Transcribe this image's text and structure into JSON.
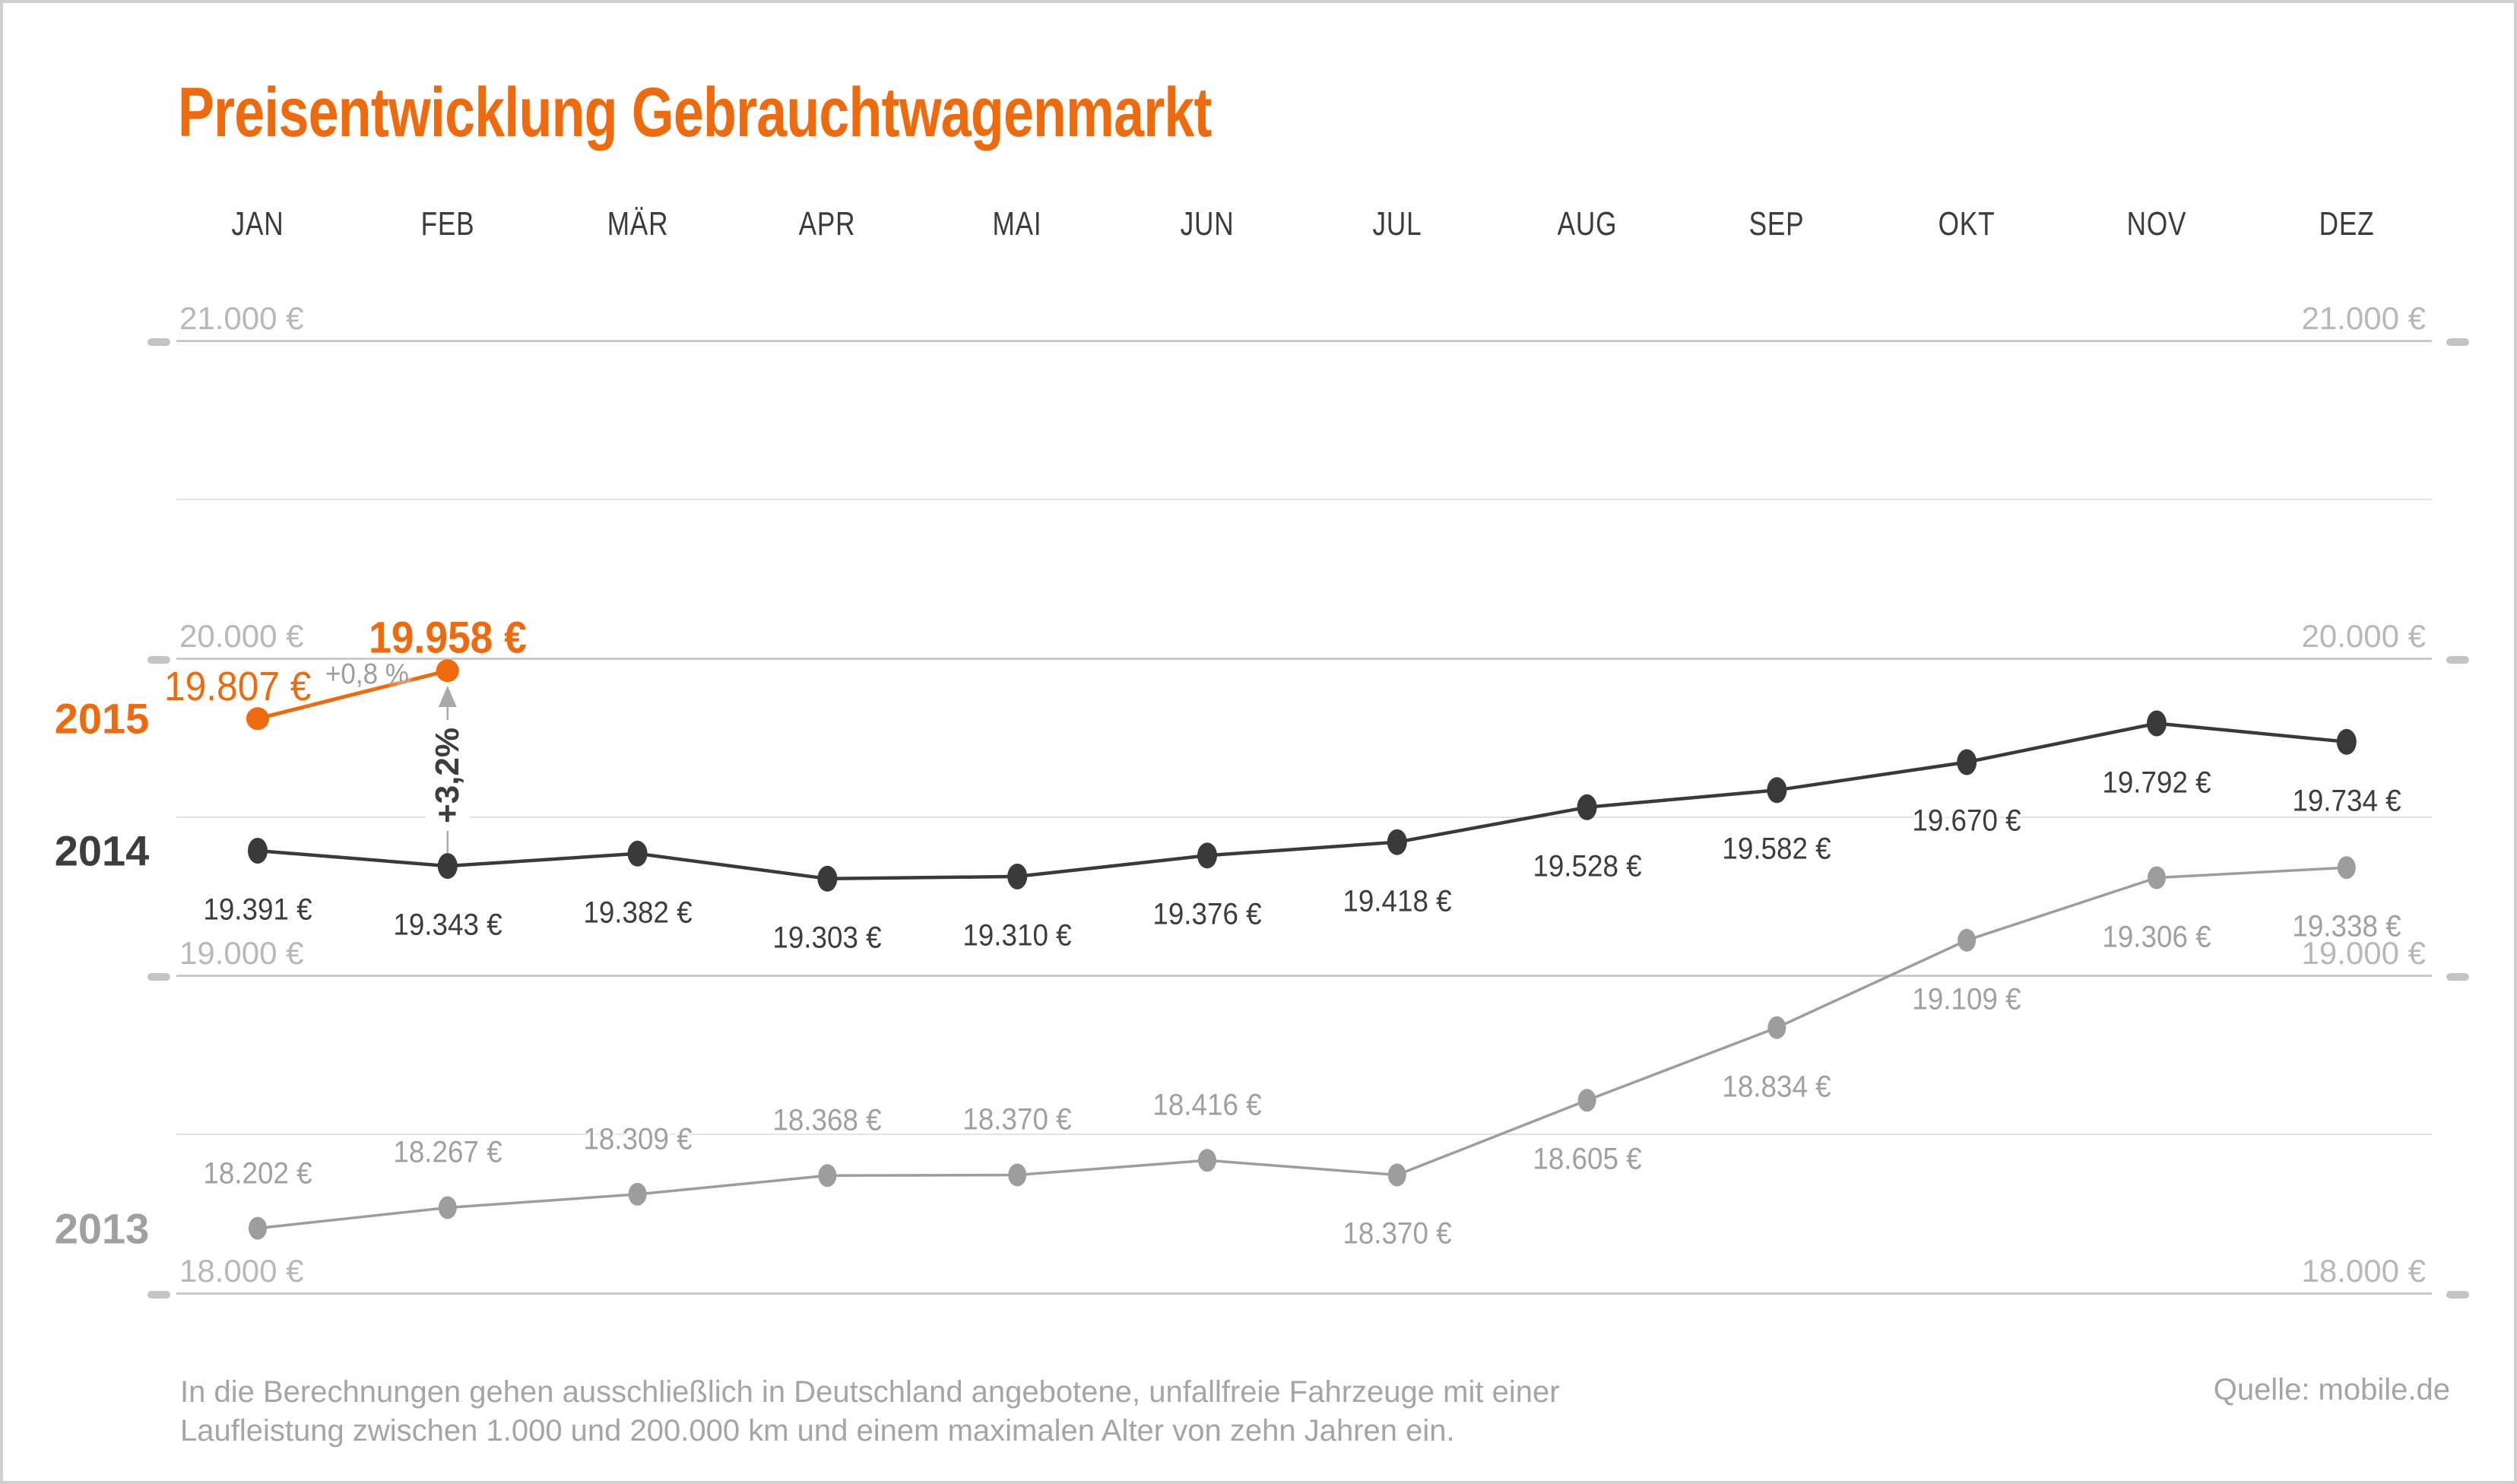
{
  "header": {
    "title": "Preisentwicklung Gebrauchtwagenmarkt"
  },
  "footer": {
    "note_lines": [
      "In die Berechnungen gehen ausschließlich in Deutschland angebotene, unfallfreie Fahrzeuge mit einer",
      "Laufleistung zwischen 1.000 und 200.000 km und einem maximalen Alter von zehn Jahren ein."
    ],
    "source": "Quelle: mobile.de"
  },
  "colors": {
    "accent": "#EF6A0D",
    "series_2014": "#3A3A3A",
    "series_2013": "#9D9D9D",
    "label_2014": "#3D3D3D",
    "label_2013": "#A0A0A0",
    "grid_major": "#C9C9C9",
    "grid_minor": "#E2E2E2",
    "axis_label": "#B8B8B8",
    "month_label": "#3C3C3C",
    "tick": "#C4C4C4",
    "annotation_gray": "#9D9D9D",
    "annotation_dark": "#3D3D3D",
    "arrow": "#A9A9A9",
    "footer_text": "#A5A5A5"
  },
  "chart_data": {
    "type": "line",
    "categories": [
      "JAN",
      "FEB",
      "MÄR",
      "APR",
      "MAI",
      "JUN",
      "JUL",
      "AUG",
      "SEP",
      "OKT",
      "NOV",
      "DEZ"
    ],
    "y_axis": {
      "ylim": [
        18000,
        21000
      ],
      "grid_step": 500,
      "labeled_step": 1000,
      "grid": true,
      "sides": "both",
      "labels": [
        {
          "value": 21000,
          "text": "21.000 €"
        },
        {
          "value": 20000,
          "text": "20.000 €"
        },
        {
          "value": 19000,
          "text": "19.000 €"
        },
        {
          "value": 18000,
          "text": "18.000 €"
        }
      ]
    },
    "series": [
      {
        "name": "2015",
        "color_key": "accent",
        "label_color_key": "accent",
        "values": [
          19807,
          19958
        ],
        "labels": [
          "19.807 €",
          "19.958 €"
        ],
        "label_positions": [
          "special",
          "special"
        ]
      },
      {
        "name": "2014",
        "color_key": "series_2014",
        "label_color_key": "label_2014",
        "values": [
          19391,
          19343,
          19382,
          19303,
          19310,
          19376,
          19418,
          19528,
          19582,
          19670,
          19792,
          19734
        ],
        "labels": [
          "19.391 €",
          "19.343 €",
          "19.382 €",
          "19.303 €",
          "19.310 €",
          "19.376 €",
          "19.418 €",
          "19.528 €",
          "19.582 €",
          "19.670 €",
          "19.792 €",
          "19.734 €"
        ],
        "label_positions": [
          "below",
          "below",
          "below",
          "below",
          "below",
          "below",
          "below",
          "below",
          "below",
          "below",
          "below",
          "below"
        ]
      },
      {
        "name": "2013",
        "color_key": "series_2013",
        "label_color_key": "label_2013",
        "values": [
          18202,
          18267,
          18309,
          18368,
          18370,
          18416,
          18370,
          18605,
          18834,
          19109,
          19306,
          19338
        ],
        "labels": [
          "18.202 €",
          "18.267 €",
          "18.309 €",
          "18.368 €",
          "18.370 €",
          "18.416 €",
          "18.370 €",
          "18.605 €",
          "18.834 €",
          "19.109 €",
          "19.306 €",
          "19.338 €"
        ],
        "label_positions": [
          "above",
          "above",
          "above",
          "above",
          "above",
          "above",
          "below",
          "below",
          "below",
          "below",
          "below",
          "below"
        ]
      }
    ],
    "annotations": {
      "jan_feb_2015_change": "+0,8 %",
      "feb_yoy_change": "+3,2%"
    },
    "legend_position": "left-inline-year-labels"
  }
}
